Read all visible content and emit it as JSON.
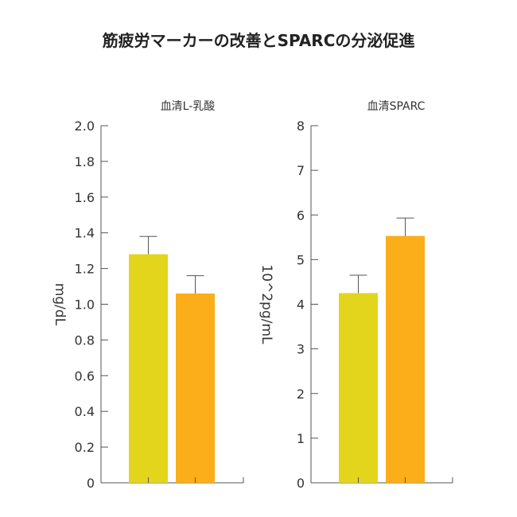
{
  "title": "筋疲労マーカーの改善とSPARCの分泌促進",
  "chart_data": [
    {
      "type": "bar",
      "title": "血清L-乳酸",
      "xlabel": "",
      "ylabel": "mg/dL",
      "ylim": [
        0,
        2.0
      ],
      "yticks": [
        0,
        0.2,
        0.4,
        0.6,
        0.8,
        1.0,
        1.2,
        1.4,
        1.6,
        1.8,
        2.0
      ],
      "ytick_labels": [
        "0",
        "0.2",
        "0.4",
        "0.6",
        "0.8",
        "1.0",
        "1.2",
        "1.4",
        "1.6",
        "1.8",
        "2.0"
      ],
      "bars": [
        {
          "value": 1.28,
          "error": 0.1,
          "color": "#e3d51c"
        },
        {
          "value": 1.06,
          "error": 0.1,
          "color": "#fbae1a"
        }
      ]
    },
    {
      "type": "bar",
      "title": "血清SPARC",
      "xlabel": "",
      "ylabel": "10^2pg/mL",
      "ylim": [
        0,
        8
      ],
      "yticks": [
        0,
        1,
        2,
        3,
        4,
        5,
        6,
        7,
        8
      ],
      "ytick_labels": [
        "0",
        "1",
        "2",
        "3",
        "4",
        "5",
        "6",
        "7",
        "8"
      ],
      "bars": [
        {
          "value": 4.25,
          "error": 0.4,
          "color": "#e3d51c"
        },
        {
          "value": 5.53,
          "error": 0.4,
          "color": "#fbae1a"
        }
      ]
    }
  ]
}
